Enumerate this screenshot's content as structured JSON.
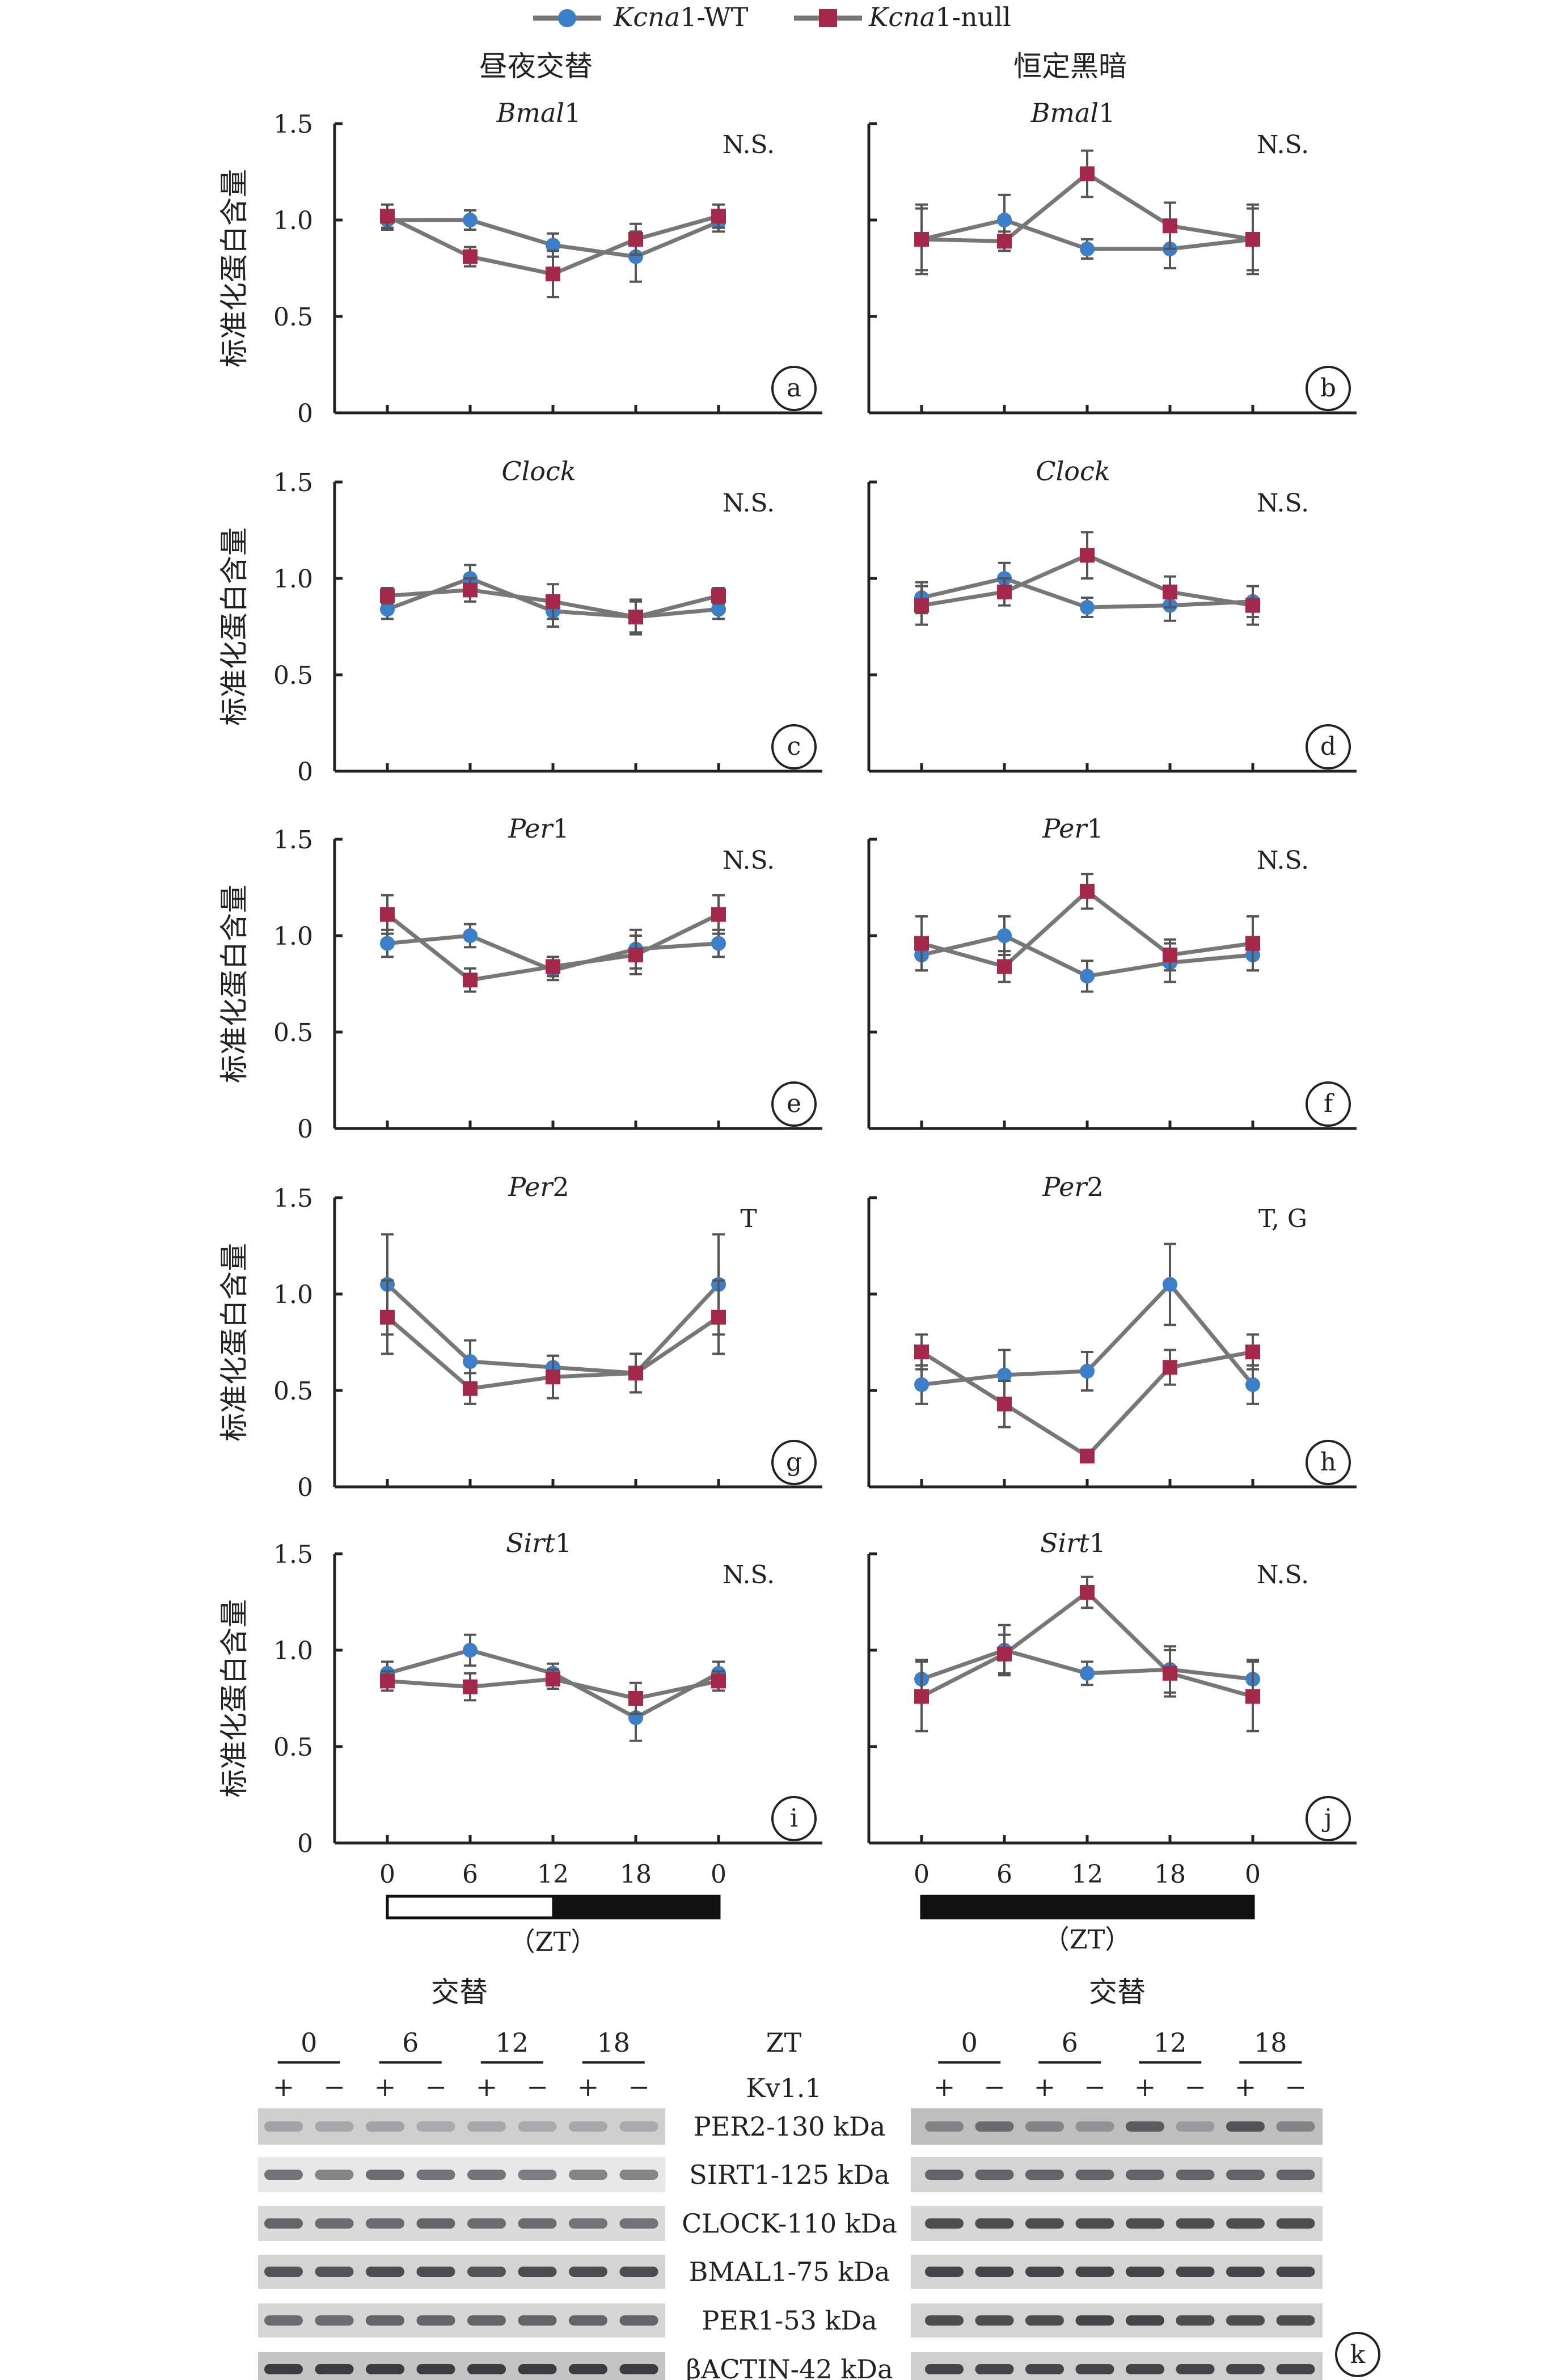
{
  "legend": {
    "items": [
      {
        "label_italic": "Kcna",
        "label_rest": "1-WT",
        "color": "#3a7fc8"
      },
      {
        "label_italic": "Kcna",
        "label_rest": "1-null",
        "color": "#a3284a"
      }
    ]
  },
  "columns": {
    "left_title": "昼夜交替",
    "right_title": "恒定黑暗"
  },
  "ylabel": "标准化蛋白含量",
  "x_ticks": [
    "0",
    "6",
    "12",
    "18",
    "0"
  ],
  "x_unit": "（ZT）",
  "colors": {
    "wt": "#3a7fc8",
    "null": "#a3284a",
    "line": "#777777",
    "errbar": "#555555"
  },
  "chart_data": [
    {
      "type": "line",
      "panel": "a",
      "title": "Bmal1",
      "annotation": "N.S.",
      "ylim": [
        0,
        1.5
      ],
      "y_ticks": [
        "0",
        "0.5",
        "1.0",
        "1.5"
      ],
      "x": [
        0,
        6,
        12,
        18,
        24
      ],
      "series": [
        {
          "name": "Kcna1-WT",
          "values": [
            1.0,
            1.0,
            0.87,
            0.81,
            0.99
          ],
          "err": [
            0.05,
            0.05,
            0.06,
            0.13,
            0.05
          ]
        },
        {
          "name": "Kcna1-null",
          "values": [
            1.02,
            0.81,
            0.72,
            0.9,
            1.02
          ],
          "err": [
            0.06,
            0.05,
            0.12,
            0.08,
            0.06
          ]
        }
      ]
    },
    {
      "type": "line",
      "panel": "b",
      "title": "Bmal1",
      "annotation": "N.S.",
      "ylim": [
        0,
        1.5
      ],
      "y_ticks": [
        "0",
        "0.5",
        "1.0",
        "1.5"
      ],
      "x": [
        0,
        6,
        12,
        18,
        24
      ],
      "series": [
        {
          "name": "Kcna1-WT",
          "values": [
            0.9,
            1.0,
            0.85,
            0.85,
            0.9
          ],
          "err": [
            0.18,
            0.13,
            0.05,
            0.1,
            0.18
          ]
        },
        {
          "name": "Kcna1-null",
          "values": [
            0.9,
            0.89,
            1.24,
            0.97,
            0.9
          ],
          "err": [
            0.16,
            0.05,
            0.12,
            0.12,
            0.16
          ]
        }
      ]
    },
    {
      "type": "line",
      "panel": "c",
      "title": "Clock",
      "annotation": "N.S.",
      "ylim": [
        0,
        1.5
      ],
      "y_ticks": [
        "0",
        "0.5",
        "1.0",
        "1.5"
      ],
      "x": [
        0,
        6,
        12,
        18,
        24
      ],
      "series": [
        {
          "name": "Kcna1-WT",
          "values": [
            0.84,
            1.0,
            0.83,
            0.8,
            0.84
          ],
          "err": [
            0.05,
            0.07,
            0.08,
            0.08,
            0.05
          ]
        },
        {
          "name": "Kcna1-null",
          "values": [
            0.91,
            0.94,
            0.88,
            0.8,
            0.91
          ],
          "err": [
            0.04,
            0.06,
            0.09,
            0.09,
            0.04
          ]
        }
      ]
    },
    {
      "type": "line",
      "panel": "d",
      "title": "Clock",
      "annotation": "N.S.",
      "ylim": [
        0,
        1.5
      ],
      "y_ticks": [
        "0",
        "0.5",
        "1.0",
        "1.5"
      ],
      "x": [
        0,
        6,
        12,
        18,
        24
      ],
      "series": [
        {
          "name": "Kcna1-WT",
          "values": [
            0.9,
            1.0,
            0.85,
            0.86,
            0.88
          ],
          "err": [
            0.08,
            0.08,
            0.05,
            0.08,
            0.08
          ]
        },
        {
          "name": "Kcna1-null",
          "values": [
            0.86,
            0.93,
            1.12,
            0.93,
            0.86
          ],
          "err": [
            0.1,
            0.07,
            0.12,
            0.08,
            0.1
          ]
        }
      ]
    },
    {
      "type": "line",
      "panel": "e",
      "title": "Per1",
      "annotation": "N.S.",
      "ylim": [
        0,
        1.5
      ],
      "y_ticks": [
        "0",
        "0.5",
        "1.0",
        "1.5"
      ],
      "x": [
        0,
        6,
        12,
        18,
        24
      ],
      "series": [
        {
          "name": "Kcna1-WT",
          "values": [
            0.96,
            1.0,
            0.82,
            0.93,
            0.96
          ],
          "err": [
            0.07,
            0.06,
            0.05,
            0.1,
            0.07
          ]
        },
        {
          "name": "Kcna1-null",
          "values": [
            1.11,
            0.77,
            0.84,
            0.9,
            1.11
          ],
          "err": [
            0.1,
            0.06,
            0.05,
            0.1,
            0.1
          ]
        }
      ]
    },
    {
      "type": "line",
      "panel": "f",
      "title": "Per1",
      "annotation": "N.S.",
      "ylim": [
        0,
        1.5
      ],
      "y_ticks": [
        "0",
        "0.5",
        "1.0",
        "1.5"
      ],
      "x": [
        0,
        6,
        12,
        18,
        24
      ],
      "series": [
        {
          "name": "Kcna1-WT",
          "values": [
            0.9,
            1.0,
            0.79,
            0.86,
            0.9
          ],
          "err": [
            0.08,
            0.1,
            0.08,
            0.1,
            0.08
          ]
        },
        {
          "name": "Kcna1-null",
          "values": [
            0.96,
            0.84,
            1.23,
            0.9,
            0.96
          ],
          "err": [
            0.14,
            0.08,
            0.09,
            0.08,
            0.14
          ]
        }
      ]
    },
    {
      "type": "line",
      "panel": "g",
      "title": "Per2",
      "annotation": "T",
      "ylim": [
        0,
        1.5
      ],
      "y_ticks": [
        "0",
        "0.5",
        "1.0",
        "1.5"
      ],
      "x": [
        0,
        6,
        12,
        18,
        24
      ],
      "series": [
        {
          "name": "Kcna1-WT",
          "values": [
            1.05,
            0.65,
            0.62,
            0.59,
            1.05
          ],
          "err": [
            0.26,
            0.11,
            0.06,
            0.1,
            0.26
          ]
        },
        {
          "name": "Kcna1-null",
          "values": [
            0.88,
            0.51,
            0.57,
            0.59,
            0.88
          ],
          "err": [
            0.19,
            0.08,
            0.11,
            0.1,
            0.19
          ]
        }
      ]
    },
    {
      "type": "line",
      "panel": "h",
      "title": "Per2",
      "annotation": "T, G",
      "ylim": [
        0,
        1.5
      ],
      "y_ticks": [
        "0",
        "0.5",
        "1.0",
        "1.5"
      ],
      "x": [
        0,
        6,
        12,
        18,
        24
      ],
      "series": [
        {
          "name": "Kcna1-WT",
          "values": [
            0.53,
            0.58,
            0.6,
            1.05,
            0.53
          ],
          "err": [
            0.1,
            0.13,
            0.1,
            0.21,
            0.1
          ]
        },
        {
          "name": "Kcna1-null",
          "values": [
            0.7,
            0.43,
            0.16,
            0.62,
            0.7
          ],
          "err": [
            0.09,
            0.12,
            0.03,
            0.09,
            0.09
          ]
        }
      ]
    },
    {
      "type": "line",
      "panel": "i",
      "title": "Sirt1",
      "annotation": "N.S.",
      "ylim": [
        0,
        1.5
      ],
      "y_ticks": [
        "0",
        "0.5",
        "1.0",
        "1.5"
      ],
      "x": [
        0,
        6,
        12,
        18,
        24
      ],
      "series": [
        {
          "name": "Kcna1-WT",
          "values": [
            0.88,
            1.0,
            0.88,
            0.65,
            0.88
          ],
          "err": [
            0.06,
            0.08,
            0.05,
            0.12,
            0.06
          ]
        },
        {
          "name": "Kcna1-null",
          "values": [
            0.84,
            0.81,
            0.85,
            0.75,
            0.84
          ],
          "err": [
            0.05,
            0.07,
            0.05,
            0.08,
            0.05
          ]
        }
      ]
    },
    {
      "type": "line",
      "panel": "j",
      "title": "Sirt1",
      "annotation": "N.S.",
      "ylim": [
        0,
        1.5
      ],
      "y_ticks": [
        "0",
        "0.5",
        "1.0",
        "1.5"
      ],
      "x": [
        0,
        6,
        12,
        18,
        24
      ],
      "series": [
        {
          "name": "Kcna1-WT",
          "values": [
            0.85,
            1.0,
            0.88,
            0.9,
            0.85
          ],
          "err": [
            0.1,
            0.13,
            0.06,
            0.12,
            0.1
          ]
        },
        {
          "name": "Kcna1-null",
          "values": [
            0.76,
            0.98,
            1.3,
            0.88,
            0.76
          ],
          "err": [
            0.18,
            0.1,
            0.08,
            0.12,
            0.18
          ]
        }
      ]
    }
  ],
  "blot": {
    "panel": "k",
    "left_title": "交替",
    "right_title": "交替",
    "zt_label": "ZT",
    "kv_label": "Kv1.1",
    "zt_groups": [
      "0",
      "6",
      "12",
      "18"
    ],
    "plus": "+",
    "minus": "−",
    "bands": [
      "PER2-130 kDa",
      "SIRT1-125 kDa",
      "CLOCK-110 kDa",
      "BMAL1-75 kDa",
      "PER1-53 kDa",
      "βACTIN-42 kDa"
    ]
  }
}
